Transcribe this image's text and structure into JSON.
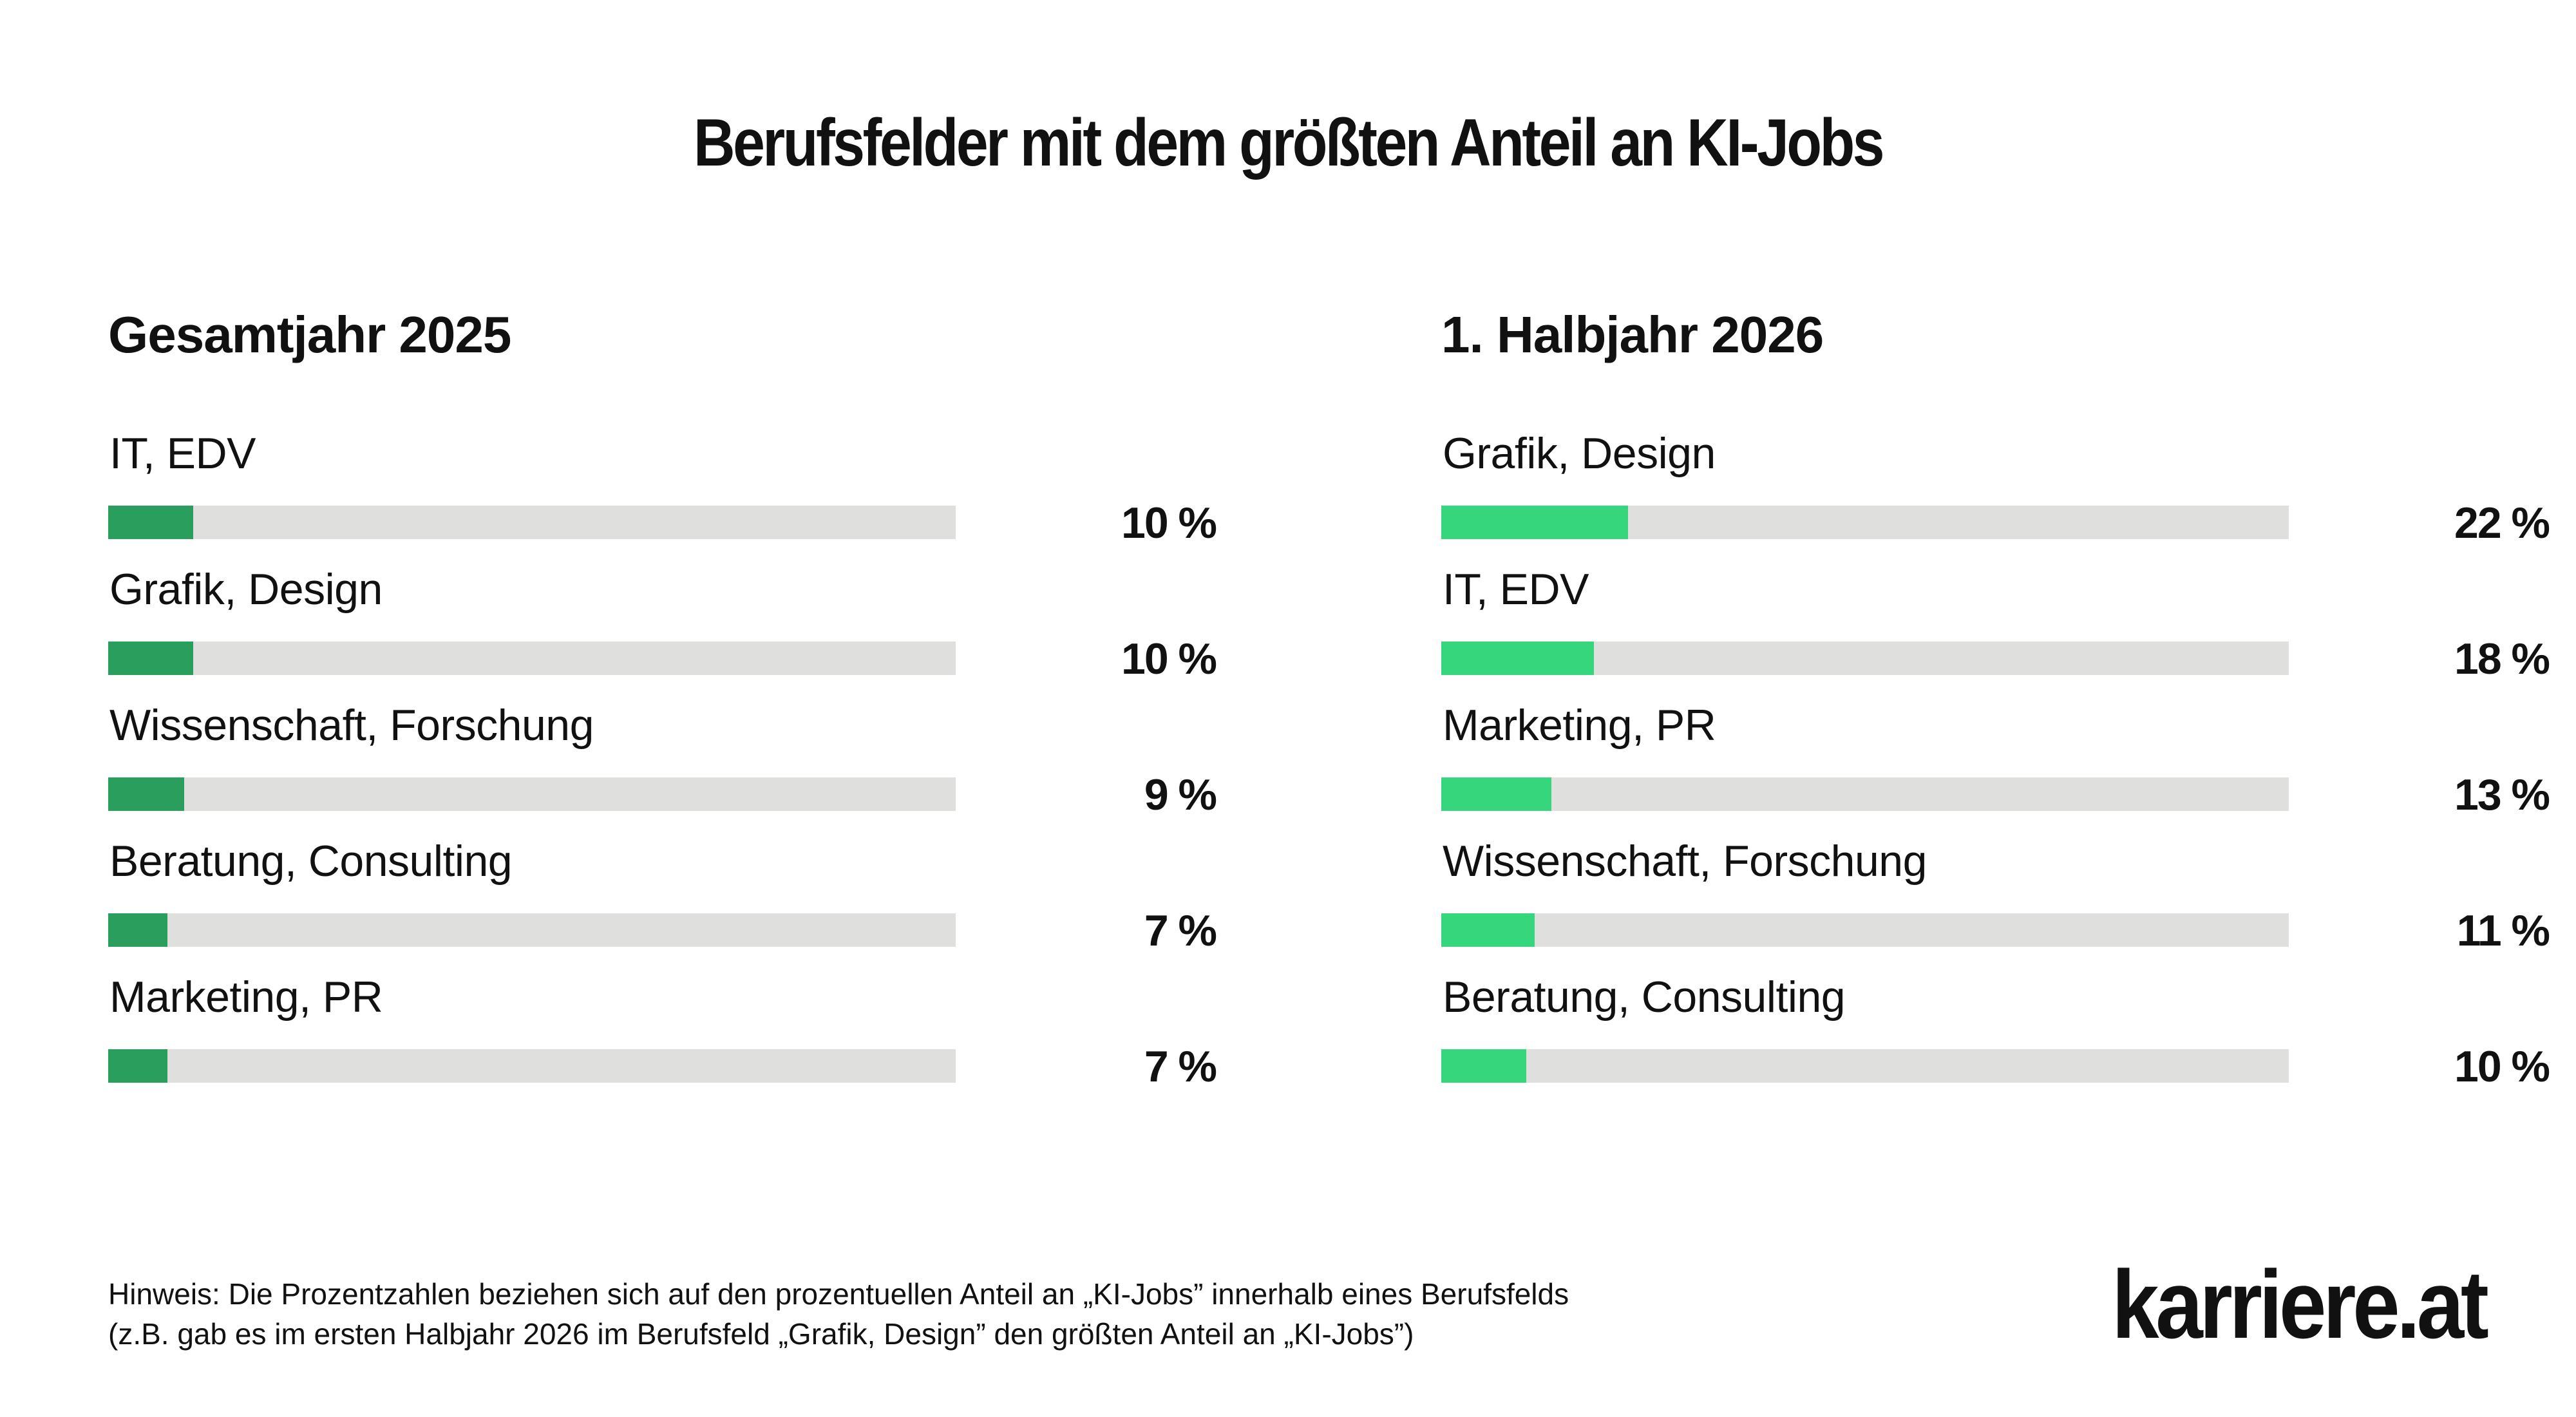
{
  "title": "Berufsfelder mit dem größten Anteil an KI-Jobs",
  "colors": {
    "left_fill": "#2a9e5c",
    "right_fill": "#36d67d",
    "track": "#dfe0dd"
  },
  "chart_data": [
    {
      "type": "bar",
      "title": "Gesamtjahr 2025",
      "categories": [
        "IT, EDV",
        "Grafik, Design",
        "Wissenschaft, Forschung",
        "Beratung, Consulting",
        "Marketing, PR"
      ],
      "values": [
        10,
        10,
        9,
        7,
        7
      ],
      "value_labels": [
        "10 %",
        "10 %",
        "9 %",
        "7 %",
        "7 %"
      ],
      "ylim": [
        0,
        100
      ],
      "orientation": "horizontal"
    },
    {
      "type": "bar",
      "title": "1. Halbjahr 2026",
      "categories": [
        "Grafik, Design",
        "IT, EDV",
        "Marketing, PR",
        "Wissenschaft, Forschung",
        "Beratung, Consulting"
      ],
      "values": [
        22,
        18,
        13,
        11,
        10
      ],
      "value_labels": [
        "22 %",
        "18 %",
        "13 %",
        "11 %",
        "10 %"
      ],
      "ylim": [
        0,
        100
      ],
      "orientation": "horizontal"
    }
  ],
  "note": {
    "line1": "Hinweis: Die Prozentzahlen beziehen sich auf den prozentuellen Anteil an „KI-Jobs” innerhalb eines Berufsfelds",
    "line2": "(z.B. gab es im ersten Halbjahr 2026 im Berufsfeld „Grafik, Design” den größten Anteil an „KI-Jobs”)"
  },
  "logo_text": "karriere.at"
}
